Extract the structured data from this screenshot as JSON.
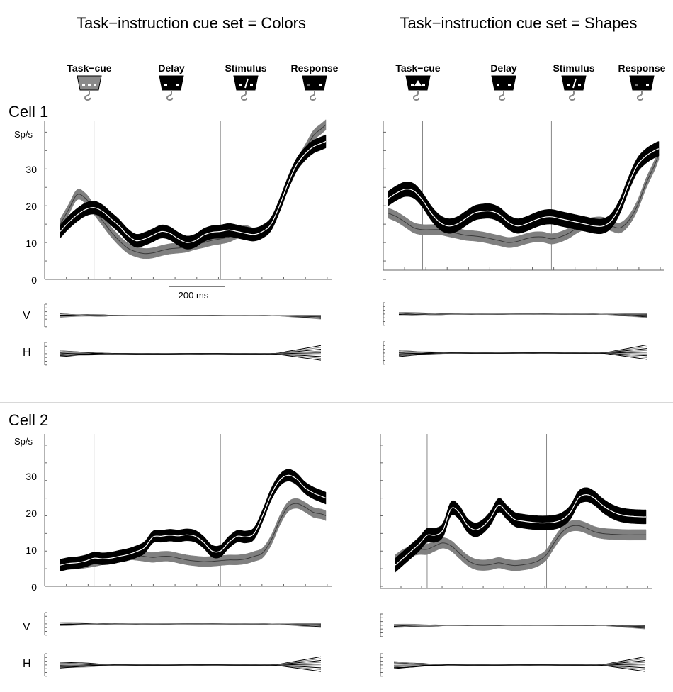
{
  "column_titles": [
    "Task−instruction cue set = Colors",
    "Task−instruction cue set = Shapes"
  ],
  "events": [
    "Task−cue",
    "Delay",
    "Stimulus",
    "Response"
  ],
  "cells": [
    "Cell 1",
    "Cell 2"
  ],
  "scale_bar_label": "200 ms",
  "eye_labels": {
    "vertical": "V",
    "horizontal": "H"
  },
  "colors": {
    "dark_trace": "#000000",
    "grey_trace": "#808080",
    "centre_line": "#ffffff",
    "task_cue_colors": "#8a8a8a",
    "task_cue_shapes": "#000000"
  },
  "chart_data": [
    {
      "type": "area",
      "panel": "Cell 1 / Colors",
      "ylabel": "Sp/s",
      "yticks": [
        0,
        10,
        20,
        30
      ],
      "ylim": [
        0,
        40
      ],
      "xlim_ms": [
        -160,
        1500
      ],
      "event_lines_ms": [
        0,
        600
      ],
      "scale_bar_ms": 200,
      "series": [
        {
          "color": "black",
          "x_ms": [
            -160,
            -120,
            -80,
            -40,
            0,
            40,
            80,
            120,
            160,
            200,
            240,
            280,
            320,
            360,
            400,
            440,
            480,
            520,
            560,
            600,
            640,
            680,
            720,
            760,
            800,
            840,
            880,
            920,
            960,
            1000,
            1040,
            1080,
            1100
          ],
          "y": [
            13,
            15.5,
            17.5,
            19,
            19.5,
            18.5,
            16.5,
            14.5,
            12,
            10.5,
            11,
            12,
            13,
            12.5,
            11,
            10,
            10.5,
            12,
            12.8,
            13,
            13.4,
            13,
            12.5,
            12.2,
            13,
            15,
            20,
            26,
            31,
            34,
            36,
            37,
            37.5
          ],
          "band": 1.8
        },
        {
          "color": "grey",
          "x_ms": [
            -160,
            -120,
            -80,
            -40,
            0,
            40,
            80,
            120,
            160,
            200,
            240,
            280,
            320,
            360,
            400,
            440,
            480,
            520,
            560,
            600,
            640,
            680,
            720,
            760,
            800,
            840,
            880,
            920,
            960,
            1000,
            1040,
            1080,
            1100
          ],
          "y": [
            15,
            19,
            23,
            22,
            19,
            16,
            13,
            10.5,
            8.5,
            7.5,
            7,
            7.2,
            7.8,
            8.3,
            8.5,
            8.8,
            9.5,
            10,
            10.6,
            11,
            11.5,
            12.5,
            13.3,
            12.5,
            13,
            15,
            20,
            26,
            31,
            35,
            39,
            41,
            42
          ],
          "band": 1.4
        }
      ]
    },
    {
      "type": "area",
      "panel": "Cell 1 / Shapes",
      "ylabel": "",
      "yticks": [],
      "ylim": [
        0,
        40
      ],
      "xlim_ms": [
        -160,
        1500
      ],
      "event_lines_ms": [
        0,
        600
      ],
      "series": [
        {
          "color": "black",
          "x_ms": [
            -160,
            -120,
            -80,
            -40,
            0,
            40,
            80,
            120,
            160,
            200,
            240,
            280,
            320,
            360,
            400,
            440,
            480,
            520,
            560,
            600,
            640,
            680,
            720,
            760,
            800,
            840,
            880,
            920,
            960,
            1000,
            1040,
            1080,
            1100
          ],
          "y": [
            22,
            23.5,
            24.5,
            24,
            21.5,
            18,
            15.5,
            14.5,
            15,
            16.5,
            18,
            18.5,
            18.5,
            17.5,
            15.5,
            14.5,
            15,
            16,
            16.8,
            17,
            16.5,
            16,
            15.5,
            15,
            14.5,
            14.5,
            16,
            20,
            26,
            31,
            33.5,
            35,
            35.5
          ],
          "band": 2.0
        },
        {
          "color": "grey",
          "x_ms": [
            -160,
            -120,
            -80,
            -40,
            0,
            40,
            80,
            120,
            160,
            200,
            240,
            280,
            320,
            360,
            400,
            440,
            480,
            520,
            560,
            600,
            640,
            680,
            720,
            760,
            800,
            840,
            880,
            920,
            960,
            1000,
            1040,
            1080,
            1100
          ],
          "y": [
            18,
            17,
            15.5,
            14,
            13.5,
            13.5,
            13.5,
            13,
            12.5,
            12,
            11.8,
            11.5,
            11,
            10.5,
            10,
            10.3,
            11,
            11.5,
            11.5,
            11,
            11.5,
            12.5,
            14,
            15,
            15.5,
            15.5,
            14.5,
            14,
            16,
            20,
            26,
            31,
            34
          ],
          "band": 1.4
        }
      ]
    },
    {
      "type": "area",
      "panel": "Cell 2 / Colors",
      "ylabel": "Sp/s",
      "yticks": [
        0,
        10,
        20,
        30
      ],
      "ylim": [
        0,
        40
      ],
      "xlim_ms": [
        -160,
        1500
      ],
      "event_lines_ms": [
        0,
        600
      ],
      "series": [
        {
          "color": "black",
          "x_ms": [
            -160,
            -120,
            -80,
            -40,
            0,
            40,
            80,
            120,
            160,
            200,
            240,
            280,
            320,
            360,
            400,
            440,
            480,
            520,
            560,
            600,
            640,
            680,
            720,
            760,
            800,
            840,
            880,
            920,
            960,
            1000,
            1040,
            1080,
            1100
          ],
          "y": [
            6,
            6.5,
            6.7,
            7.2,
            8,
            7.8,
            8,
            8.5,
            9,
            9.8,
            11,
            14,
            14.2,
            14.5,
            14.3,
            14.6,
            14.2,
            12.5,
            10,
            10,
            12.5,
            14.2,
            14,
            15,
            20,
            26,
            30,
            31.5,
            30.5,
            28,
            26.5,
            25.5,
            25
          ],
          "band": 1.7
        },
        {
          "color": "grey",
          "x_ms": [
            -160,
            -120,
            -80,
            -40,
            0,
            40,
            80,
            120,
            160,
            200,
            240,
            280,
            320,
            360,
            400,
            440,
            480,
            520,
            560,
            600,
            640,
            680,
            720,
            760,
            800,
            840,
            880,
            920,
            960,
            1000,
            1040,
            1080,
            1100
          ],
          "y": [
            6,
            6.2,
            6.3,
            6.6,
            7,
            7.5,
            8.2,
            8.8,
            9,
            8.8,
            8.5,
            8.2,
            8.5,
            8.5,
            8,
            7.5,
            7.2,
            7,
            7.1,
            7.3,
            7.5,
            7.5,
            7.8,
            8.5,
            9.5,
            13,
            18.5,
            22.5,
            23.5,
            22.5,
            21,
            20.5,
            20
          ],
          "band": 1.4
        }
      ]
    },
    {
      "type": "area",
      "panel": "Cell 2 / Shapes",
      "ylabel": "",
      "yticks": [],
      "ylim": [
        0,
        40
      ],
      "xlim_ms": [
        -160,
        1500
      ],
      "event_lines_ms": [
        0,
        600
      ],
      "series": [
        {
          "color": "black",
          "x_ms": [
            -160,
            -120,
            -80,
            -40,
            0,
            40,
            80,
            120,
            160,
            200,
            240,
            280,
            320,
            360,
            400,
            440,
            480,
            520,
            560,
            600,
            640,
            680,
            720,
            760,
            800,
            840,
            880,
            920,
            960,
            1000,
            1040,
            1080,
            1100
          ],
          "y": [
            6,
            8,
            10,
            12,
            14.5,
            14.5,
            16,
            22,
            21,
            17.5,
            16,
            17,
            19.5,
            23,
            21,
            19,
            18.5,
            18.2,
            18,
            18,
            18.2,
            19,
            21,
            25,
            26,
            25,
            23,
            21.5,
            20.5,
            20,
            19.8,
            19.7,
            19.7
          ],
          "band": 2.0
        },
        {
          "color": "grey",
          "x_ms": [
            -160,
            -120,
            -80,
            -40,
            0,
            40,
            80,
            120,
            160,
            200,
            240,
            280,
            320,
            360,
            400,
            440,
            480,
            520,
            560,
            600,
            640,
            680,
            720,
            760,
            800,
            840,
            880,
            920,
            960,
            1000,
            1040,
            1080,
            1100
          ],
          "y": [
            7.5,
            9,
            10,
            10.5,
            10.5,
            11.5,
            12.3,
            11.5,
            9.5,
            7.5,
            6.3,
            6,
            6.2,
            6.7,
            6.2,
            5.9,
            6.1,
            6.5,
            7.3,
            9,
            12.5,
            15.5,
            17,
            17.2,
            16.5,
            15.5,
            15,
            14.8,
            14.7,
            14.6,
            14.6,
            14.6,
            14.6
          ],
          "band": 1.5
        }
      ]
    }
  ]
}
